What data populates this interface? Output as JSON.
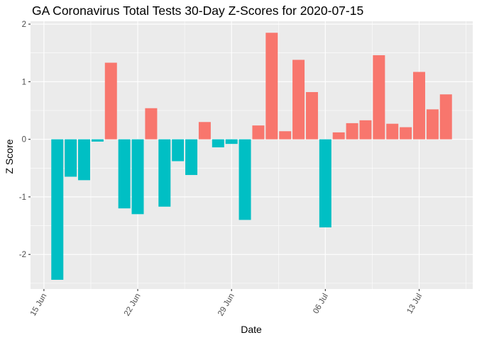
{
  "chart_data": {
    "type": "bar",
    "title": "GA Coronavirus Total Tests 30-Day Z-Scores for 2020-07-15",
    "xlabel": "Date",
    "ylabel": "Z Score",
    "x": [
      "2020-06-16",
      "2020-06-17",
      "2020-06-18",
      "2020-06-19",
      "2020-06-20",
      "2020-06-21",
      "2020-06-22",
      "2020-06-23",
      "2020-06-24",
      "2020-06-25",
      "2020-06-26",
      "2020-06-27",
      "2020-06-28",
      "2020-06-29",
      "2020-06-30",
      "2020-07-01",
      "2020-07-02",
      "2020-07-03",
      "2020-07-04",
      "2020-07-05",
      "2020-07-06",
      "2020-07-07",
      "2020-07-08",
      "2020-07-09",
      "2020-07-10",
      "2020-07-11",
      "2020-07-12",
      "2020-07-13",
      "2020-07-14",
      "2020-07-15"
    ],
    "values": [
      -2.44,
      -0.65,
      -0.71,
      -0.04,
      1.33,
      -1.2,
      -1.3,
      0.54,
      -1.17,
      -0.38,
      -0.62,
      0.3,
      -0.14,
      -0.08,
      -1.4,
      0.24,
      1.85,
      0.14,
      1.38,
      0.82,
      -1.53,
      0.12,
      0.28,
      0.33,
      1.46,
      0.27,
      0.21,
      1.17,
      0.52,
      0.78
    ],
    "xlim": [
      "2020-06-14",
      "2020-07-17"
    ],
    "ylim": [
      -2.6,
      2.05
    ],
    "x_ticks": [
      {
        "date": "2020-06-15",
        "label": "15 Jun"
      },
      {
        "date": "2020-06-22",
        "label": "22 Jun"
      },
      {
        "date": "2020-06-29",
        "label": "29 Jun"
      },
      {
        "date": "2020-07-06",
        "label": "06 Jul"
      },
      {
        "date": "2020-07-13",
        "label": "13 Jul"
      }
    ],
    "y_ticks": [
      -2,
      -1,
      0,
      1,
      2
    ],
    "positive_color": "#F8766D",
    "negative_color": "#00BFC4",
    "panel_color": "#EBEBEB",
    "grid_color": "#FFFFFF",
    "grid": true,
    "legend": "none"
  }
}
